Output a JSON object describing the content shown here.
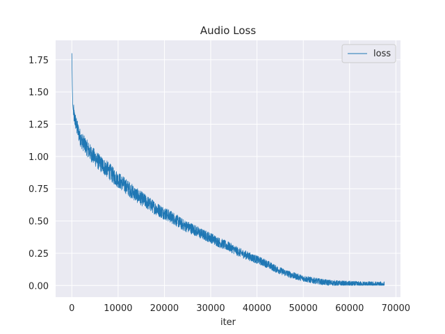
{
  "chart_data": {
    "type": "line",
    "title": "Audio Loss",
    "xlabel": "iter",
    "ylabel": "",
    "xlim": [
      -3500,
      71000
    ],
    "ylim": [
      -0.09,
      1.9
    ],
    "xticks": [
      0,
      10000,
      20000,
      30000,
      40000,
      50000,
      60000,
      70000
    ],
    "yticks": [
      0.0,
      0.25,
      0.5,
      0.75,
      1.0,
      1.25,
      1.5,
      1.75
    ],
    "ytick_labels": [
      "0.00",
      "0.25",
      "0.50",
      "0.75",
      "1.00",
      "1.25",
      "1.50",
      "1.75"
    ],
    "grid": true,
    "legend": "top-right",
    "x_max": 67500,
    "series": [
      {
        "name": "loss",
        "color": "#1f77b4",
        "x": [
          0,
          100,
          200,
          300,
          500,
          800,
          1000,
          1500,
          2000,
          3000,
          4000,
          5000,
          6000,
          7000,
          8000,
          9000,
          10000,
          12000,
          14000,
          16000,
          18000,
          20000,
          22000,
          24000,
          26000,
          28000,
          30000,
          32000,
          34000,
          36000,
          38000,
          40000,
          42000,
          44000,
          46000,
          48000,
          50000,
          52000,
          54000,
          56000,
          58000,
          60000,
          62000,
          64000,
          66000,
          67500
        ],
        "y": [
          1.8,
          1.55,
          1.4,
          1.36,
          1.31,
          1.27,
          1.24,
          1.18,
          1.13,
          1.08,
          1.03,
          0.99,
          0.95,
          0.92,
          0.89,
          0.85,
          0.82,
          0.76,
          0.7,
          0.65,
          0.6,
          0.56,
          0.52,
          0.47,
          0.44,
          0.4,
          0.37,
          0.33,
          0.3,
          0.26,
          0.23,
          0.2,
          0.17,
          0.13,
          0.1,
          0.075,
          0.055,
          0.04,
          0.028,
          0.02,
          0.015,
          0.012,
          0.01,
          0.009,
          0.008,
          0.008
        ]
      }
    ]
  }
}
